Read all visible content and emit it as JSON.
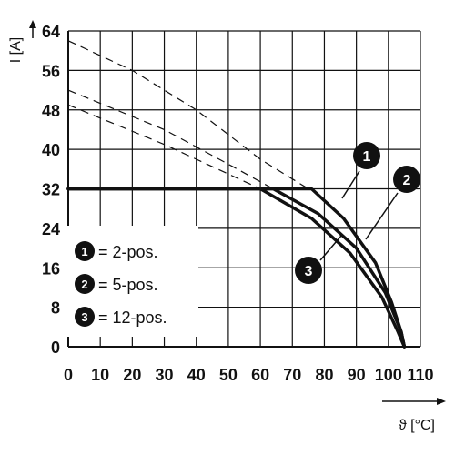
{
  "chart_data": {
    "type": "line",
    "title": "",
    "xlabel": "ϑ [°C]",
    "ylabel": "I [A]",
    "xlim": [
      0,
      110
    ],
    "ylim": [
      0,
      64
    ],
    "x_ticks": [
      "0",
      "10",
      "20",
      "30",
      "40",
      "50",
      "60",
      "70",
      "80",
      "90",
      "100",
      "110"
    ],
    "y_ticks": [
      "0",
      "8",
      "16",
      "24",
      "32",
      "40",
      "48",
      "56",
      "64"
    ],
    "grid": true,
    "colors": {
      "line": "#111111",
      "grid": "#111111",
      "marker_fill": "#111111",
      "marker_text": "#ffffff"
    },
    "series": [
      {
        "name": "2-pos.",
        "marker": "1",
        "solid": [
          [
            0,
            32
          ],
          [
            76,
            32
          ],
          [
            86,
            26
          ],
          [
            96,
            17
          ],
          [
            101,
            9
          ],
          [
            104,
            3
          ],
          [
            105,
            0
          ]
        ],
        "dashed": [
          [
            0,
            62
          ],
          [
            20,
            56
          ],
          [
            40,
            48
          ],
          [
            60,
            38
          ],
          [
            75,
            32
          ]
        ]
      },
      {
        "name": "5-pos.",
        "marker": "2",
        "solid": [
          [
            0,
            32
          ],
          [
            64,
            32
          ],
          [
            78,
            27
          ],
          [
            90,
            20
          ],
          [
            99,
            11
          ],
          [
            104,
            3
          ],
          [
            105,
            0
          ]
        ],
        "dashed": [
          [
            0,
            52
          ],
          [
            30,
            44
          ],
          [
            50,
            37
          ],
          [
            64,
            32
          ]
        ]
      },
      {
        "name": "12-pos.",
        "marker": "3",
        "solid": [
          [
            0,
            32
          ],
          [
            60,
            32
          ],
          [
            76,
            26
          ],
          [
            88,
            19
          ],
          [
            98,
            10
          ],
          [
            103,
            3
          ],
          [
            105,
            0
          ]
        ],
        "dashed": [
          [
            0,
            49
          ],
          [
            30,
            41
          ],
          [
            50,
            35
          ],
          [
            60,
            32
          ]
        ]
      }
    ],
    "legend": {
      "placement": "bottom-left",
      "items": [
        {
          "marker": "1",
          "text": "= 2-pos."
        },
        {
          "marker": "2",
          "text": "= 5-pos."
        },
        {
          "marker": "3",
          "text": "= 12-pos."
        }
      ]
    }
  }
}
